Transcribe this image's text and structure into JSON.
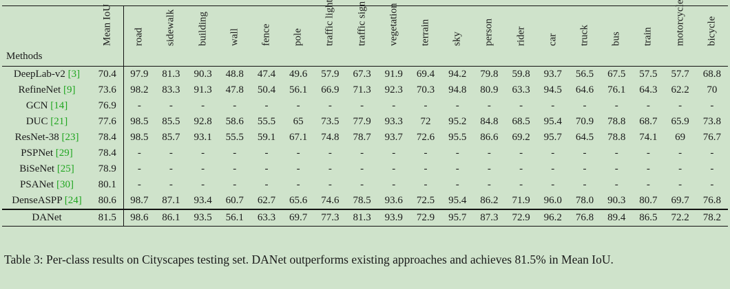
{
  "table": {
    "methods_header": "Methods",
    "mean_header": "Mean IoU",
    "classes": [
      "road",
      "sidewalk",
      "building",
      "wall",
      "fence",
      "pole",
      "traffic light",
      "traffic sign",
      "vegetation",
      "terrain",
      "sky",
      "person",
      "rider",
      "car",
      "truck",
      "bus",
      "train",
      "motorcycle",
      "bicycle"
    ],
    "rows": [
      {
        "method": "DeepLab-v2 ",
        "cite": "[3]",
        "mean": "70.4",
        "values": [
          "97.9",
          "81.3",
          "90.3",
          "48.8",
          "47.4",
          "49.6",
          "57.9",
          "67.3",
          "91.9",
          "69.4",
          "94.2",
          "79.8",
          "59.8",
          "93.7",
          "56.5",
          "67.5",
          "57.5",
          "57.7",
          "68.8"
        ],
        "bold": []
      },
      {
        "method": "RefineNet ",
        "cite": "[9]",
        "mean": "73.6",
        "values": [
          "98.2",
          "83.3",
          "91.3",
          "47.8",
          "50.4",
          "56.1",
          "66.9",
          "71.3",
          "92.3",
          "70.3",
          "94.8",
          "80.9",
          "63.3",
          "94.5",
          "64.6",
          "76.1",
          "64.3",
          "62.2",
          "70"
        ],
        "bold": []
      },
      {
        "method": "GCN ",
        "cite": "[14]",
        "mean": "76.9",
        "values": [
          "-",
          "-",
          "-",
          "-",
          "-",
          "-",
          "-",
          "-",
          "-",
          "-",
          "-",
          "-",
          "-",
          "-",
          "-",
          "-",
          "-",
          "-",
          "-"
        ],
        "bold": []
      },
      {
        "method": "DUC ",
        "cite": "[21]",
        "mean": "77.6",
        "values": [
          "98.5",
          "85.5",
          "92.8",
          "58.6",
          "55.5",
          "65",
          "73.5",
          "77.9",
          "93.3",
          "72",
          "95.2",
          "84.8",
          "68.5",
          "95.4",
          "70.9",
          "78.8",
          "68.7",
          "65.9",
          "73.8"
        ],
        "bold": []
      },
      {
        "method": "ResNet-38 ",
        "cite": "[23]",
        "mean": "78.4",
        "values": [
          "98.5",
          "85.7",
          "93.1",
          "55.5",
          "59.1",
          "67.1",
          "74.8",
          "78.7",
          "93.7",
          "72.6",
          "95.5",
          "86.6",
          "69.2",
          "95.7",
          "64.5",
          "78.8",
          "74.1",
          "69",
          "76.7"
        ],
        "bold": []
      },
      {
        "method": "PSPNet ",
        "cite": "[29]",
        "mean": "78.4",
        "values": [
          "-",
          "-",
          "-",
          "-",
          "-",
          "-",
          "-",
          "-",
          "-",
          "-",
          "-",
          "-",
          "-",
          "-",
          "-",
          "-",
          "-",
          "-",
          "-"
        ],
        "bold": []
      },
      {
        "method": "BiSeNet ",
        "cite": "[25]",
        "mean": "78.9",
        "values": [
          "-",
          "-",
          "-",
          "-",
          "-",
          "-",
          "-",
          "-",
          "-",
          "-",
          "-",
          "-",
          "-",
          "-",
          "-",
          "-",
          "-",
          "-",
          "-"
        ],
        "bold": []
      },
      {
        "method": "PSANet ",
        "cite": "[30]",
        "mean": "80.1",
        "values": [
          "-",
          "-",
          "-",
          "-",
          "-",
          "-",
          "-",
          "-",
          "-",
          "-",
          "-",
          "-",
          "-",
          "-",
          "-",
          "-",
          "-",
          "-",
          "-"
        ],
        "bold": []
      },
      {
        "method": "DenseASPP ",
        "cite": "[24]",
        "mean": "80.6",
        "values": [
          "98.7",
          "87.1",
          "93.4",
          "60.7",
          "62.7",
          "65.6",
          "74.6",
          "78.5",
          "93.6",
          "72.5",
          "95.4",
          "86.2",
          "71.9",
          "96.0",
          "78.0",
          "90.3",
          "80.7",
          "69.7",
          "76.8"
        ],
        "bold": [
          0,
          1,
          3,
          14,
          15
        ]
      },
      {
        "method": "DANet",
        "cite": "",
        "mean": "81.5",
        "mean_bold": true,
        "values": [
          "98.6",
          "86.1",
          "93.5",
          "56.1",
          "63.3",
          "69.7",
          "77.3",
          "81.3",
          "93.9",
          "72.9",
          "95.7",
          "87.3",
          "72.9",
          "96.2",
          "76.8",
          "89.4",
          "86.5",
          "72.2",
          "78.2"
        ],
        "bold": [
          2,
          4,
          5,
          6,
          7,
          8,
          9,
          10,
          11,
          12,
          13,
          16,
          17,
          18
        ]
      }
    ]
  },
  "caption": "Table 3: Per-class results on Cityscapes testing set. DANet outperforms existing approaches and achieves 81.5% in Mean IoU."
}
